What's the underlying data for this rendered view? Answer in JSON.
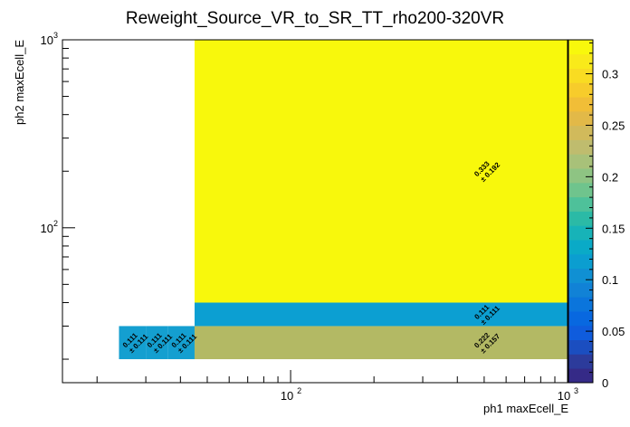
{
  "chart_data": {
    "type": "heatmap",
    "title": "Reweight_Source_VR_to_SR_TT_rho200-320VR",
    "xlabel": "ph1 maxEcell_E",
    "ylabel": "ph2 maxEcell_E",
    "xscale": "log",
    "yscale": "log",
    "xlim": [
      15,
      1000
    ],
    "ylim": [
      15,
      1000
    ],
    "x_tick_labels": [
      {
        "value": 100,
        "base": "10",
        "exp": "2"
      },
      {
        "value": 1000,
        "base": "10",
        "exp": "3"
      }
    ],
    "y_tick_labels": [
      {
        "value": 100,
        "base": "10",
        "exp": "2"
      },
      {
        "value": 1000,
        "base": "10",
        "exp": "3"
      }
    ],
    "zlim": [
      0,
      0.333
    ],
    "z_ticks": [
      "0",
      "0.05",
      "0.1",
      "0.15",
      "0.2",
      "0.25",
      "0.3"
    ],
    "z_tick_values": [
      0,
      0.05,
      0.1,
      0.15,
      0.2,
      0.25,
      0.3
    ],
    "colormap": "parula",
    "cells": [
      {
        "x0": 24,
        "x1": 30,
        "y0": 20,
        "y1": 30,
        "value": 0.111,
        "label": "0.111",
        "error": "± 0.111",
        "color": "#149fd0"
      },
      {
        "x0": 30,
        "x1": 36,
        "y0": 20,
        "y1": 30,
        "value": 0.111,
        "label": "0.111",
        "error": "± 0.111",
        "color": "#149fd0"
      },
      {
        "x0": 36,
        "x1": 45,
        "y0": 20,
        "y1": 30,
        "value": 0.111,
        "label": "0.111",
        "error": "± 0.111",
        "color": "#149fd0"
      },
      {
        "x0": 45,
        "x1": 1000,
        "y0": 20,
        "y1": 30,
        "value": 0.222,
        "label": "0.222",
        "error": "± 0.157",
        "color": "#b3b964"
      },
      {
        "x0": 45,
        "x1": 1000,
        "y0": 30,
        "y1": 40,
        "value": 0.111,
        "label": "0.111",
        "error": "± 0.111",
        "color": "#0c9fd2"
      },
      {
        "x0": 45,
        "x1": 1000,
        "y0": 40,
        "y1": 1000,
        "value": 0.333,
        "label": "0.333",
        "error": "± 0.192",
        "color": "#f8f80c"
      }
    ]
  }
}
